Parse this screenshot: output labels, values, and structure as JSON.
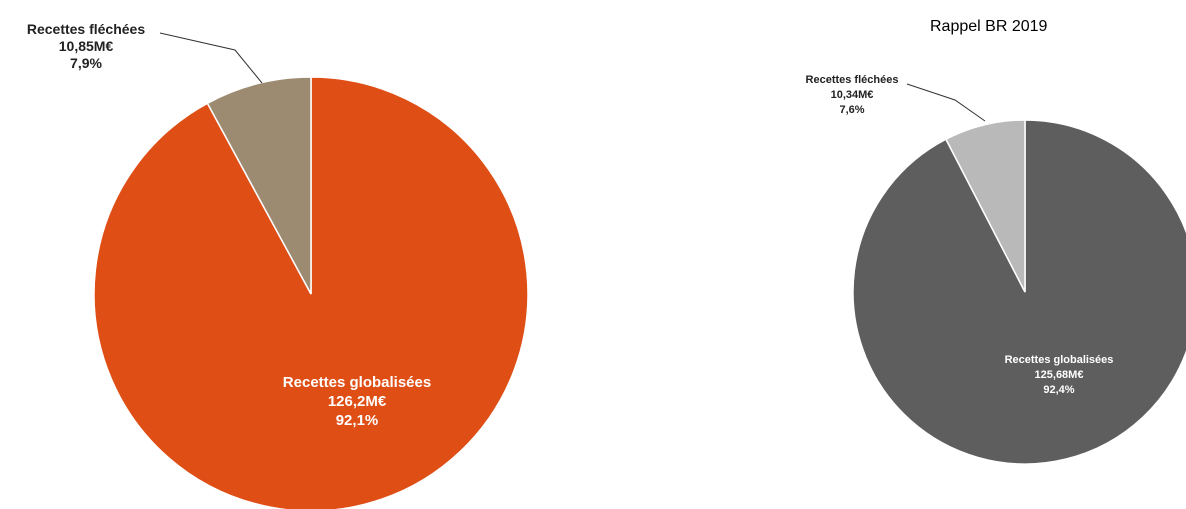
{
  "chart_data": [
    {
      "type": "pie",
      "title": "",
      "colors": [
        "#df4e15",
        "#9c8a71"
      ],
      "slices": [
        {
          "label": "Recettes globalisées",
          "value_label": "126,2M€",
          "pct_label": "92,1%",
          "value": 126.2,
          "percent": 92.1
        },
        {
          "label": "Recettes fléchées",
          "value_label": "10,85M€",
          "pct_label": "7,9%",
          "value": 10.85,
          "percent": 7.9
        }
      ]
    },
    {
      "type": "pie",
      "title": "Rappel BR 2019",
      "colors": [
        "#5e5e5e",
        "#b9b9b9"
      ],
      "slices": [
        {
          "label": "Recettes globalisées",
          "value_label": "125,68M€",
          "pct_label": "92,4%",
          "value": 125.68,
          "percent": 92.4
        },
        {
          "label": "Recettes fléchées",
          "value_label": "10,34M€",
          "pct_label": "7,6%",
          "value": 10.34,
          "percent": 7.6
        }
      ]
    }
  ]
}
